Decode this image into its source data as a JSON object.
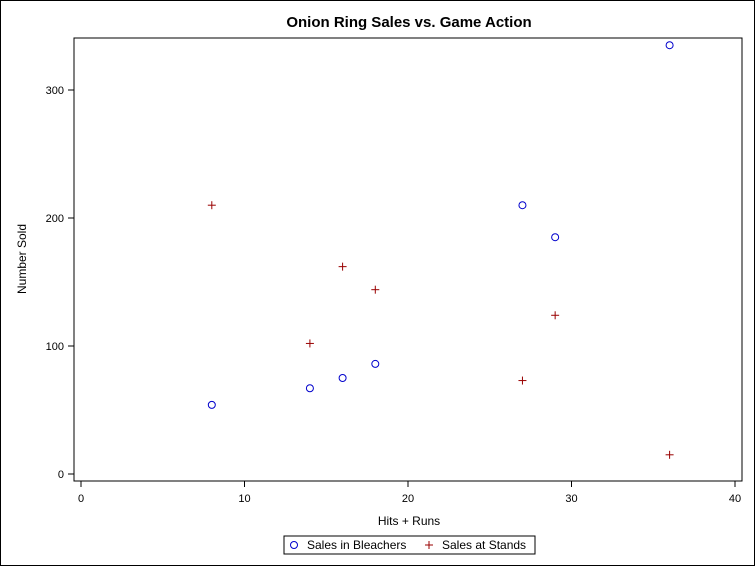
{
  "chart_data": {
    "type": "scatter",
    "title": "Onion Ring Sales vs. Game Action",
    "xlabel": "Hits + Runs",
    "ylabel": "Number Sold",
    "xlim": [
      0,
      40
    ],
    "ylim": [
      0,
      335
    ],
    "xticks": [
      0,
      10,
      20,
      30,
      40
    ],
    "yticks": [
      0,
      100,
      200,
      300
    ],
    "grid": false,
    "legend_position": "bottom-center",
    "series": [
      {
        "name": "Sales in Bleachers",
        "marker": "circle",
        "color": "#0000cc",
        "points": [
          {
            "x": 8,
            "y": 54
          },
          {
            "x": 14,
            "y": 67
          },
          {
            "x": 16,
            "y": 75
          },
          {
            "x": 18,
            "y": 86
          },
          {
            "x": 27,
            "y": 210
          },
          {
            "x": 29,
            "y": 185
          },
          {
            "x": 36,
            "y": 335
          }
        ]
      },
      {
        "name": "Sales at Stands",
        "marker": "plus",
        "color": "#990000",
        "points": [
          {
            "x": 8,
            "y": 210
          },
          {
            "x": 14,
            "y": 102
          },
          {
            "x": 16,
            "y": 162
          },
          {
            "x": 18,
            "y": 144
          },
          {
            "x": 27,
            "y": 73
          },
          {
            "x": 29,
            "y": 124
          },
          {
            "x": 36,
            "y": 15
          }
        ]
      }
    ]
  }
}
